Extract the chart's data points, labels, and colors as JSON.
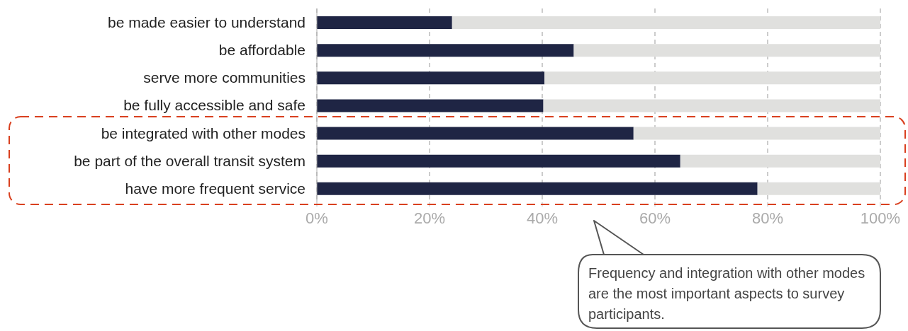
{
  "chart_data": {
    "type": "bar",
    "orientation": "horizontal",
    "stacked": true,
    "grid": "x",
    "categories": [
      "be made easier to understand",
      "be affordable",
      "serve more communities",
      "be fully accessible and safe",
      "be integrated with other modes",
      "be part of the overall transit system",
      "have more frequent service"
    ],
    "series": [
      {
        "color": "#1f2544",
        "values": [
          24.0,
          45.6,
          40.4,
          40.2,
          56.2,
          64.5,
          78.2
        ]
      },
      {
        "color": "#e0e0de",
        "values": [
          76.0,
          54.4,
          59.6,
          59.8,
          43.8,
          35.5,
          21.8
        ]
      }
    ],
    "xlim": [
      0,
      100
    ],
    "xticks": [
      {
        "value": 0,
        "label": "0%"
      },
      {
        "value": 20,
        "label": "20%"
      },
      {
        "value": 40,
        "label": "40%"
      },
      {
        "value": 60,
        "label": "60%"
      },
      {
        "value": 80,
        "label": "80%"
      },
      {
        "value": 100,
        "label": "100%"
      }
    ],
    "annotations": [
      "Frequency and integration with other modes are the most important aspects to survey participants."
    ]
  }
}
